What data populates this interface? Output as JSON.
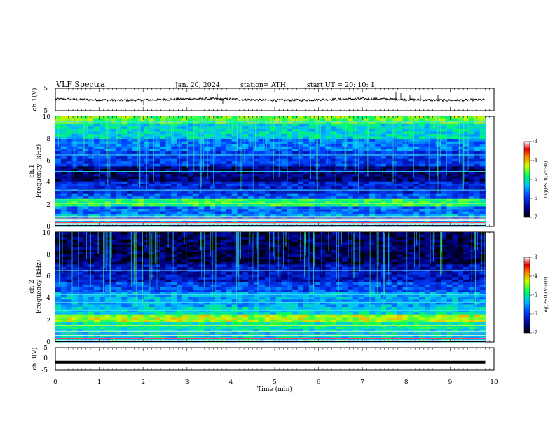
{
  "header": {
    "title": "VLF  Spectra",
    "date": "Jan. 20, 2024",
    "station": "station= ATH",
    "start": "start  UT  =    20: 10: 1"
  },
  "chart_data": [
    {
      "type": "line",
      "panel": "ch1-waveform",
      "ylabel": "ch.1(V)",
      "ylim": [
        -5,
        5
      ],
      "yticks": [
        "5",
        "-5"
      ],
      "x_range_min": [
        0,
        9.8
      ],
      "baseline_v": 0.0,
      "noise_v": 0.5
    },
    {
      "type": "heatmap",
      "panel": "ch1-spectrogram",
      "ylabel_line1": "ch.1",
      "ylabel_line2": "Frequency  (kHz)",
      "ylim": [
        0,
        10
      ],
      "yticks": [
        "0",
        "2",
        "4",
        "6",
        "8",
        "10"
      ],
      "colorbar": {
        "label": "log(PSD)(V²/Hz)",
        "ticks": [
          "-3",
          "-4",
          "-5",
          "-6",
          "-7"
        ],
        "range": [
          -7,
          -3
        ]
      },
      "bands_khz": [
        0.3,
        0.6,
        0.9,
        1.5,
        2.1,
        2.4,
        3.3,
        4.3,
        5.0,
        6.5,
        9.5
      ]
    },
    {
      "type": "heatmap",
      "panel": "ch2-spectrogram",
      "ylabel_line1": "ch.2",
      "ylabel_line2": "Frequency  (kHz)",
      "ylim": [
        0,
        10
      ],
      "yticks": [
        "0",
        "2",
        "4",
        "6",
        "8",
        "10"
      ],
      "colorbar": {
        "label": "log(PSD)(V²/Hz)",
        "ticks": [
          "-3",
          "-4",
          "-5",
          "-6",
          "-7"
        ],
        "range": [
          -7,
          -3
        ]
      },
      "bands_khz": [
        0.3,
        0.6,
        1.0,
        1.5,
        2.0,
        2.2,
        2.9,
        3.6,
        4.3,
        5.0,
        6.5
      ]
    },
    {
      "type": "line",
      "panel": "ch3-waveform",
      "ylabel": "ch.3(V)",
      "ylim": [
        -5,
        5
      ],
      "yticks": [
        "5",
        "0",
        "-5"
      ],
      "x_range_min": [
        0,
        9.8
      ],
      "baseline_v": -1.5,
      "noise_v": 0.0
    }
  ],
  "xaxis": {
    "label": "Time  (min)",
    "ticks": [
      "0",
      "1",
      "2",
      "3",
      "4",
      "5",
      "6",
      "7",
      "8",
      "9",
      "10"
    ],
    "range": [
      0,
      10
    ]
  }
}
